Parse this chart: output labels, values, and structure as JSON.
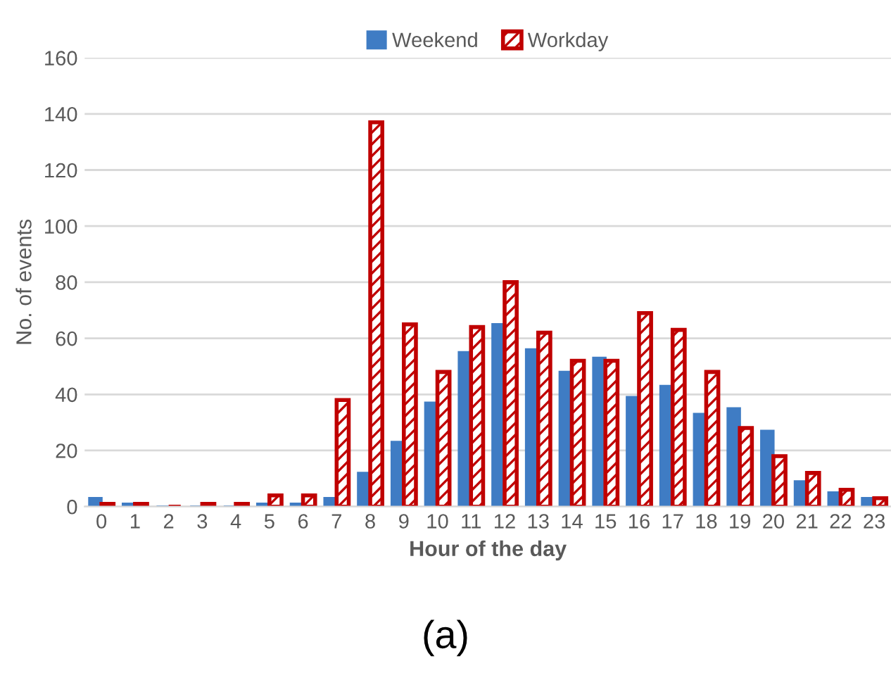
{
  "chart_data": {
    "type": "bar",
    "xlabel": "Hour of the day",
    "ylabel": "No. of events",
    "categories": [
      "0",
      "1",
      "2",
      "3",
      "4",
      "5",
      "6",
      "7",
      "8",
      "9",
      "10",
      "11",
      "12",
      "13",
      "14",
      "15",
      "16",
      "17",
      "18",
      "19",
      "20",
      "21",
      "22",
      "23"
    ],
    "series": [
      {
        "name": "Weekend",
        "color": "#3f7cc4",
        "values": [
          3,
          1,
          0,
          0,
          0,
          1,
          1,
          3,
          12,
          23,
          37,
          55,
          65,
          56,
          48,
          53,
          39,
          43,
          33,
          35,
          27,
          9,
          5,
          3
        ]
      },
      {
        "name": "Workday",
        "color": "#c00000",
        "values": [
          1,
          1,
          0,
          1,
          1,
          4,
          4,
          38,
          137,
          65,
          48,
          64,
          80,
          62,
          52,
          52,
          69,
          63,
          48,
          28,
          18,
          12,
          6,
          3
        ]
      }
    ],
    "ylim": [
      0,
      160
    ],
    "yticks": [
      0,
      20,
      40,
      60,
      80,
      100,
      120,
      140,
      160
    ],
    "grid": "y",
    "legend": "top",
    "annotations": [
      "(a)"
    ]
  }
}
